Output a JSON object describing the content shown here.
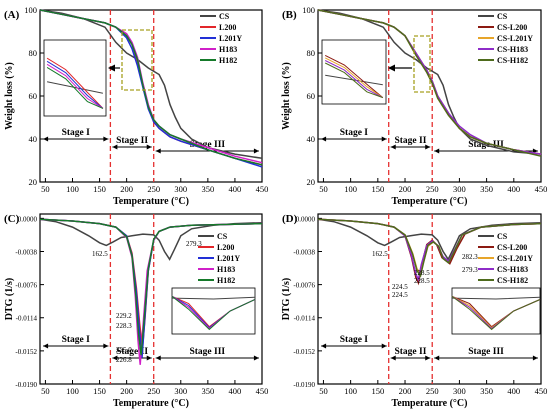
{
  "colors": {
    "CS": "#444444",
    "L200": "#e2262a",
    "L201Y": "#2230d6",
    "H183": "#d020c8",
    "H182": "#157a2a",
    "CS_L200": "#8c1a12",
    "CS_L201Y": "#e7a52a",
    "CS_H183": "#8e2cc8",
    "CS_H182": "#4e6b1c",
    "stage_line": "#e53030",
    "inset_box": "#a6a020"
  },
  "chart_data": [
    {
      "panel_label": "(A)",
      "type": "line",
      "xlabel": "Temperature (°C)",
      "ylabel": "Weight loss (%)",
      "xlim": [
        40,
        450
      ],
      "ylim": [
        20,
        100
      ],
      "x_ticks": [
        "50",
        "100",
        "150",
        "200",
        "250",
        "300",
        "350",
        "400",
        "450"
      ],
      "y_ticks": [
        "20",
        "40",
        "60",
        "80",
        "100"
      ],
      "legend": [
        "CS",
        "L200",
        "L201Y",
        "H183",
        "H182"
      ],
      "legend_position": "top-right",
      "stage_lines_x": [
        170,
        250
      ],
      "stages": [
        "Stage I",
        "Stage II",
        "Stage III"
      ],
      "series": [
        {
          "name": "CS",
          "color_key": "CS",
          "x": [
            40,
            80,
            120,
            160,
            180,
            200,
            220,
            240,
            260,
            270,
            280,
            290,
            300,
            320,
            350,
            400,
            450
          ],
          "y": [
            100,
            98.5,
            96,
            92,
            85,
            80,
            77,
            73,
            70,
            65,
            56,
            50,
            45,
            40,
            36,
            33,
            31
          ]
        },
        {
          "name": "L200",
          "color_key": "L200",
          "x": [
            40,
            80,
            120,
            160,
            180,
            200,
            210,
            220,
            230,
            240,
            250,
            260,
            280,
            300,
            350,
            400,
            450
          ],
          "y": [
            100,
            98,
            96,
            94,
            92,
            88,
            84,
            76,
            65,
            55,
            48,
            45,
            41,
            39,
            35,
            31,
            28
          ]
        },
        {
          "name": "L201Y",
          "color_key": "L201Y",
          "x": [
            40,
            80,
            120,
            160,
            180,
            200,
            210,
            220,
            230,
            240,
            250,
            260,
            280,
            300,
            350,
            400,
            450
          ],
          "y": [
            100,
            98,
            96,
            94,
            92,
            87,
            82,
            74,
            64,
            54,
            48,
            45,
            41,
            39,
            35,
            31,
            27
          ]
        },
        {
          "name": "H183",
          "color_key": "H183",
          "x": [
            40,
            80,
            120,
            160,
            180,
            200,
            210,
            220,
            230,
            240,
            250,
            260,
            280,
            300,
            350,
            400,
            450
          ],
          "y": [
            100,
            98,
            96,
            94,
            92,
            89,
            85,
            78,
            66,
            56,
            49,
            46,
            42,
            40,
            36,
            32,
            29
          ]
        },
        {
          "name": "H182",
          "color_key": "H182",
          "x": [
            40,
            80,
            120,
            160,
            180,
            200,
            210,
            220,
            230,
            240,
            250,
            260,
            280,
            300,
            350,
            400,
            450
          ],
          "y": [
            100,
            98,
            96,
            94,
            92,
            88,
            84,
            77,
            65,
            55,
            49,
            46,
            42,
            40,
            35,
            31,
            28
          ]
        }
      ]
    },
    {
      "panel_label": "(B)",
      "type": "line",
      "xlabel": "Temperature (°C)",
      "ylabel": "Weight loss (%)",
      "xlim": [
        40,
        450
      ],
      "ylim": [
        20,
        100
      ],
      "x_ticks": [
        "50",
        "100",
        "150",
        "200",
        "250",
        "300",
        "350",
        "400",
        "450"
      ],
      "y_ticks": [
        "20",
        "40",
        "60",
        "80",
        "100"
      ],
      "legend": [
        "CS",
        "CS-L200",
        "CS-L201Y",
        "CS-H183",
        "CS-H182"
      ],
      "legend_position": "top-right",
      "stage_lines_x": [
        170,
        250
      ],
      "stages": [
        "Stage I",
        "Stage II",
        "Stage III"
      ],
      "series": [
        {
          "name": "CS",
          "color_key": "CS",
          "x": [
            40,
            80,
            120,
            160,
            180,
            200,
            220,
            240,
            260,
            270,
            280,
            290,
            300,
            320,
            350,
            400,
            450
          ],
          "y": [
            100,
            98.5,
            96,
            92,
            85,
            80,
            77,
            73,
            70,
            65,
            56,
            50,
            45,
            40,
            37,
            34,
            33
          ]
        },
        {
          "name": "CS-L200",
          "color_key": "CS_L200",
          "x": [
            40,
            80,
            120,
            160,
            180,
            200,
            220,
            240,
            250,
            260,
            280,
            300,
            320,
            350,
            400,
            450
          ],
          "y": [
            100,
            98,
            96,
            94,
            92,
            88,
            80,
            72,
            67,
            60,
            52,
            45,
            41,
            38,
            35,
            33
          ]
        },
        {
          "name": "CS-L201Y",
          "color_key": "CS_L201Y",
          "x": [
            40,
            80,
            120,
            160,
            180,
            200,
            220,
            240,
            250,
            260,
            280,
            300,
            320,
            350,
            400,
            450
          ],
          "y": [
            100,
            98,
            96,
            94,
            92,
            88,
            79,
            71,
            66,
            59,
            51,
            45,
            41,
            38,
            35,
            33
          ]
        },
        {
          "name": "CS-H183",
          "color_key": "CS_H183",
          "x": [
            40,
            80,
            120,
            160,
            180,
            200,
            220,
            240,
            250,
            260,
            280,
            300,
            320,
            350,
            400,
            450
          ],
          "y": [
            100,
            98,
            96,
            94,
            92,
            88,
            80,
            72,
            67,
            60,
            52,
            46,
            42,
            38,
            35,
            33
          ]
        },
        {
          "name": "CS-H182",
          "color_key": "CS_H182",
          "x": [
            40,
            80,
            120,
            160,
            180,
            200,
            220,
            240,
            250,
            260,
            280,
            300,
            320,
            350,
            400,
            450
          ],
          "y": [
            100,
            98,
            96,
            94,
            92,
            88,
            79,
            71,
            66,
            59,
            51,
            45,
            41,
            38,
            35,
            32
          ]
        }
      ]
    },
    {
      "panel_label": "(C)",
      "type": "line",
      "xlabel": "Temperature (°C)",
      "ylabel": "DTG (1/s)",
      "xlim": [
        40,
        450
      ],
      "ylim": [
        -0.019,
        0.0005
      ],
      "x_ticks": [
        "50",
        "100",
        "150",
        "200",
        "250",
        "300",
        "350",
        "400",
        "450"
      ],
      "y_ticks": [
        "0.0000",
        "-0.0038",
        "-0.0076",
        "-0.0114",
        "-0.0152",
        "-0.0190"
      ],
      "legend": [
        "CS",
        "L200",
        "L201Y",
        "H183",
        "H182"
      ],
      "legend_position": "center-right",
      "stage_lines_x": [
        170,
        250
      ],
      "stages": [
        "Stage I",
        "Stage II",
        "Stage III"
      ],
      "annotations": [
        "162.5",
        "279.3",
        "229.2",
        "228.3",
        "225.0",
        "226.8"
      ],
      "series": [
        {
          "name": "CS",
          "color_key": "CS",
          "x": [
            40,
            70,
            100,
            130,
            150,
            162.5,
            175,
            190,
            210,
            230,
            250,
            260,
            270,
            279.3,
            288,
            300,
            320,
            360,
            400,
            450
          ],
          "y": [
            -0.0001,
            -0.0004,
            -0.001,
            -0.002,
            -0.0028,
            -0.0031,
            -0.0027,
            -0.0022,
            -0.002,
            -0.0018,
            -0.0019,
            -0.0025,
            -0.0038,
            -0.0047,
            -0.0036,
            -0.002,
            -0.0012,
            -0.0008,
            -0.0006,
            -0.0005
          ]
        },
        {
          "name": "L200",
          "color_key": "L200",
          "x": [
            40,
            100,
            150,
            180,
            200,
            210,
            218,
            224,
            229.2,
            234,
            240,
            250,
            260,
            280,
            320,
            380,
            450
          ],
          "y": [
            -0.0001,
            -0.0003,
            -0.0006,
            -0.001,
            -0.002,
            -0.004,
            -0.008,
            -0.012,
            -0.015,
            -0.0115,
            -0.006,
            -0.0025,
            -0.0015,
            -0.001,
            -0.0008,
            -0.0007,
            -0.0006
          ]
        },
        {
          "name": "L201Y",
          "color_key": "L201Y",
          "x": [
            40,
            100,
            150,
            180,
            200,
            210,
            218,
            224,
            228.3,
            233,
            240,
            250,
            260,
            280,
            320,
            380,
            450
          ],
          "y": [
            -0.0001,
            -0.0003,
            -0.0006,
            -0.001,
            -0.002,
            -0.0042,
            -0.0085,
            -0.013,
            -0.016,
            -0.012,
            -0.006,
            -0.0025,
            -0.0015,
            -0.001,
            -0.0008,
            -0.0007,
            -0.0006
          ]
        },
        {
          "name": "H183",
          "color_key": "H183",
          "x": [
            40,
            100,
            150,
            180,
            200,
            210,
            216,
            221,
            225.0,
            230,
            238,
            250,
            260,
            280,
            320,
            380,
            450
          ],
          "y": [
            -0.0001,
            -0.0003,
            -0.0006,
            -0.001,
            -0.0022,
            -0.0045,
            -0.009,
            -0.014,
            -0.0168,
            -0.0125,
            -0.006,
            -0.0025,
            -0.0015,
            -0.001,
            -0.0008,
            -0.0007,
            -0.0006
          ]
        },
        {
          "name": "H182",
          "color_key": "H182",
          "x": [
            40,
            100,
            150,
            180,
            200,
            210,
            217,
            222,
            226.8,
            232,
            240,
            250,
            260,
            280,
            320,
            380,
            450
          ],
          "y": [
            -0.0001,
            -0.0003,
            -0.0006,
            -0.001,
            -0.0021,
            -0.0043,
            -0.0088,
            -0.0132,
            -0.0157,
            -0.0118,
            -0.0058,
            -0.0024,
            -0.0015,
            -0.001,
            -0.0008,
            -0.0007,
            -0.0006
          ]
        }
      ]
    },
    {
      "panel_label": "(D)",
      "type": "line",
      "xlabel": "Temperature (°C)",
      "ylabel": "DTG (1/s)",
      "xlim": [
        40,
        450
      ],
      "ylim": [
        -0.019,
        0.0005
      ],
      "x_ticks": [
        "50",
        "100",
        "150",
        "200",
        "250",
        "300",
        "350",
        "400",
        "450"
      ],
      "y_ticks": [
        "0.0000",
        "-0.0038",
        "-0.0076",
        "-0.0114",
        "-0.0152",
        "-0.0190"
      ],
      "legend": [
        "CS",
        "CS-L200",
        "CS-L201Y",
        "CS-H183",
        "CS-H182"
      ],
      "legend_position": "center-right",
      "stage_lines_x": [
        170,
        250
      ],
      "stages": [
        "Stage I",
        "Stage II",
        "Stage III"
      ],
      "annotations": [
        "162.5",
        "282.3",
        "279.3",
        "228.5",
        "228.5",
        "224.5",
        "224.5"
      ],
      "series": [
        {
          "name": "CS",
          "color_key": "CS",
          "x": [
            40,
            70,
            100,
            130,
            150,
            162.5,
            175,
            190,
            210,
            230,
            250,
            260,
            270,
            279.3,
            288,
            300,
            320,
            360,
            400,
            450
          ],
          "y": [
            -0.0001,
            -0.0004,
            -0.001,
            -0.002,
            -0.0028,
            -0.0031,
            -0.0027,
            -0.0022,
            -0.002,
            -0.0018,
            -0.0019,
            -0.0025,
            -0.0038,
            -0.0047,
            -0.0036,
            -0.002,
            -0.0012,
            -0.0008,
            -0.0006,
            -0.0005
          ]
        },
        {
          "name": "CS-L200",
          "color_key": "CS_L200",
          "x": [
            40,
            100,
            150,
            180,
            200,
            212,
            220,
            224.5,
            230,
            240,
            250,
            258,
            268,
            282.3,
            295,
            310,
            340,
            400,
            450
          ],
          "y": [
            -0.0001,
            -0.0003,
            -0.0006,
            -0.001,
            -0.002,
            -0.0045,
            -0.0068,
            -0.0074,
            -0.0055,
            -0.003,
            -0.0025,
            -0.003,
            -0.0045,
            -0.0052,
            -0.0035,
            -0.0018,
            -0.001,
            -0.0007,
            -0.0006
          ]
        },
        {
          "name": "CS-L201Y",
          "color_key": "CS_L201Y",
          "x": [
            40,
            100,
            150,
            180,
            200,
            214,
            222,
            228.5,
            234,
            242,
            252,
            262,
            270,
            280,
            292,
            305,
            340,
            400,
            450
          ],
          "y": [
            -0.0001,
            -0.0003,
            -0.0006,
            -0.001,
            -0.0019,
            -0.004,
            -0.0058,
            -0.0063,
            -0.005,
            -0.0032,
            -0.0027,
            -0.0032,
            -0.0045,
            -0.005,
            -0.0036,
            -0.0019,
            -0.001,
            -0.0007,
            -0.0006
          ]
        },
        {
          "name": "CS-H183",
          "color_key": "CS_H183",
          "x": [
            40,
            100,
            150,
            180,
            200,
            212,
            220,
            224.5,
            230,
            240,
            250,
            260,
            270,
            280,
            292,
            305,
            340,
            400,
            450
          ],
          "y": [
            -0.0001,
            -0.0003,
            -0.0006,
            -0.001,
            -0.002,
            -0.0043,
            -0.0064,
            -0.007,
            -0.0053,
            -0.0031,
            -0.0026,
            -0.0031,
            -0.0044,
            -0.0049,
            -0.0035,
            -0.0019,
            -0.001,
            -0.0007,
            -0.0006
          ]
        },
        {
          "name": "CS-H182",
          "color_key": "CS_H182",
          "x": [
            40,
            100,
            150,
            180,
            200,
            214,
            222,
            228.5,
            234,
            242,
            252,
            262,
            270,
            280,
            292,
            305,
            340,
            400,
            450
          ],
          "y": [
            -0.0001,
            -0.0003,
            -0.0006,
            -0.001,
            -0.0019,
            -0.0041,
            -0.006,
            -0.0066,
            -0.0051,
            -0.0031,
            -0.0027,
            -0.0032,
            -0.0046,
            -0.0051,
            -0.0036,
            -0.0019,
            -0.001,
            -0.0007,
            -0.0006
          ]
        }
      ]
    }
  ]
}
